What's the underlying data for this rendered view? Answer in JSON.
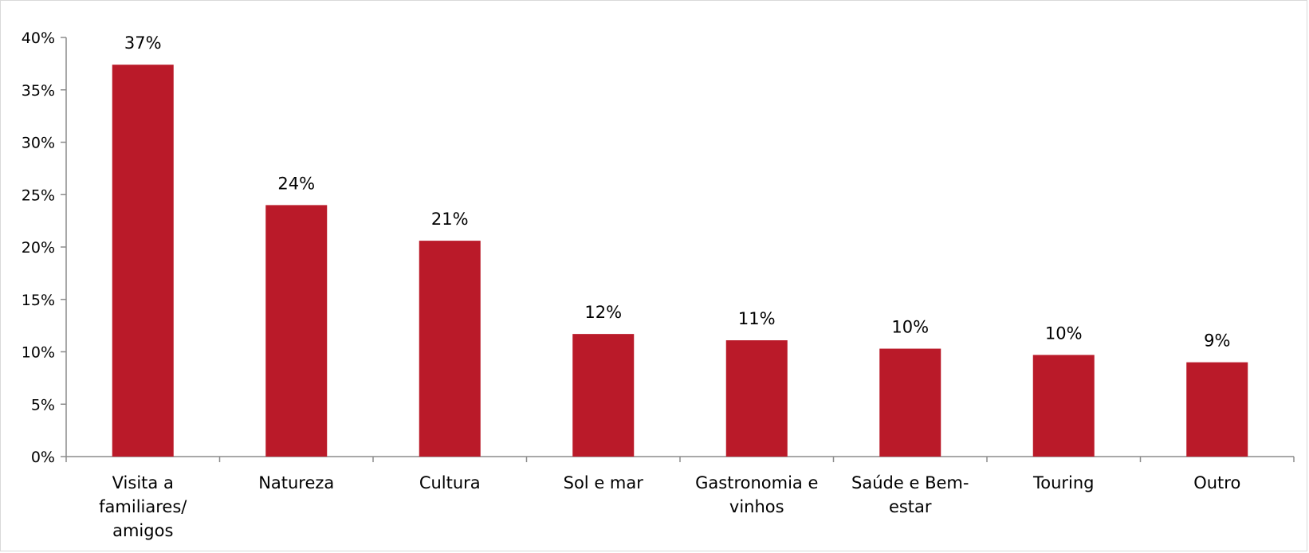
{
  "chart_data": {
    "type": "bar",
    "categories": [
      [
        "Visita a",
        "familiares/",
        "amigos"
      ],
      [
        "Natureza"
      ],
      [
        "Cultura"
      ],
      [
        "Sol e mar"
      ],
      [
        "Gastronomia e",
        "vinhos"
      ],
      [
        "Saúde e Bem-",
        "estar"
      ],
      [
        "Touring"
      ],
      [
        "Outro"
      ]
    ],
    "values": [
      37.4,
      24.0,
      20.6,
      11.7,
      11.1,
      10.3,
      9.7,
      9.0
    ],
    "data_labels": [
      "37%",
      "24%",
      "21%",
      "12%",
      "11%",
      "10%",
      "10%",
      "9%"
    ],
    "yticks": [
      "0%",
      "5%",
      "10%",
      "15%",
      "20%",
      "25%",
      "30%",
      "35%",
      "40%"
    ],
    "ylim": [
      0,
      40
    ],
    "bar_color": "#ba1a29",
    "grid": false,
    "legend": "none"
  }
}
